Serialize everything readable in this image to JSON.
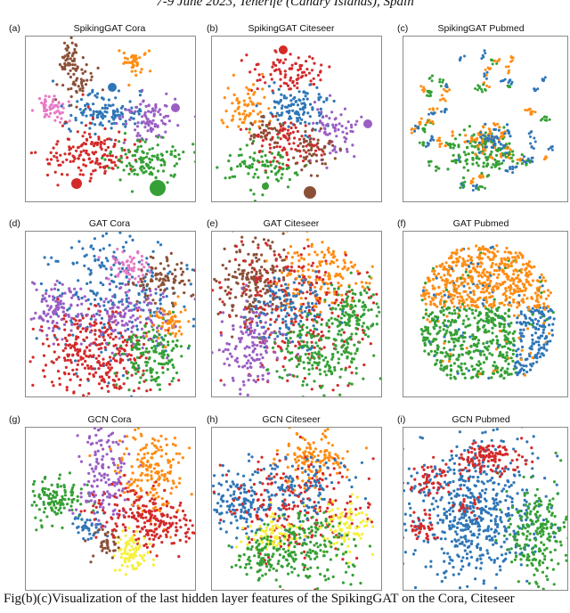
{
  "header": "7-9 June 2023, Tenerife (Canary Islands), Spain",
  "caption": "Fig(b)(c)Visualization of the last hidden layer features of the SpikingGAT on the Cora, Citeseer",
  "colors": {
    "blue": "#2f76b6",
    "orange": "#ff8c12",
    "green": "#35a035",
    "red": "#d42a2a",
    "purple": "#9a5ec4",
    "brown": "#8b5038",
    "pink": "#e77ac7",
    "yellow": "#f5f03a"
  },
  "panels": [
    {
      "label": "(a)",
      "title": "SpikingGAT Cora"
    },
    {
      "label": "(b)",
      "title": "SpikingGAT Citeseer"
    },
    {
      "label": "(c)",
      "title": "SpikingGAT Pubmed"
    },
    {
      "label": "(d)",
      "title": "GAT Cora"
    },
    {
      "label": "(e)",
      "title": "GAT Citeseer"
    },
    {
      "label": "(f)",
      "title": "GAT Pubmed"
    },
    {
      "label": "(g)",
      "title": "GCN Cora"
    },
    {
      "label": "(h)",
      "title": "GCN Citeseer"
    },
    {
      "label": "(i)",
      "title": "GCN Pubmed"
    }
  ]
}
